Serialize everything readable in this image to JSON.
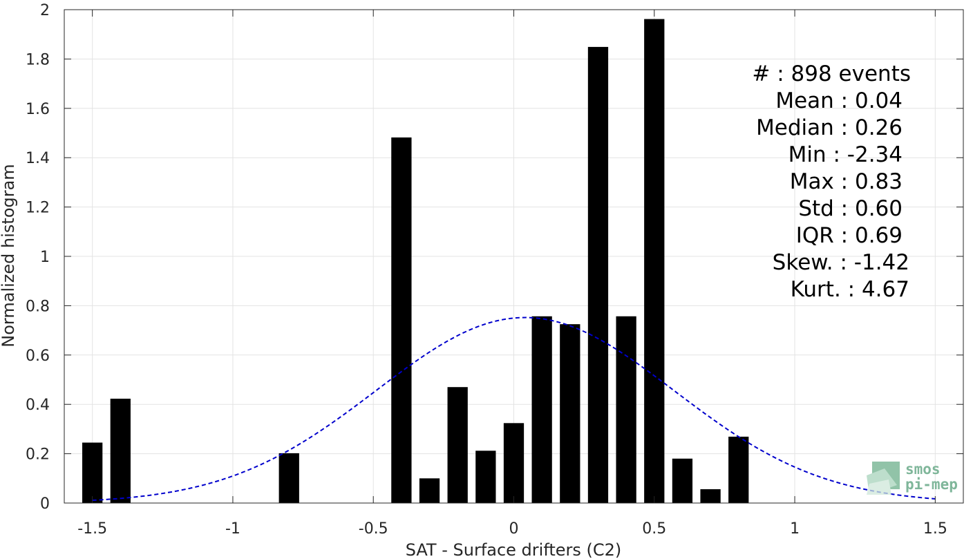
{
  "chart_data": {
    "type": "bar",
    "xlabel": "SAT - Surface drifters (C2)",
    "ylabel": "Normalized histogram",
    "xlim": [
      -1.6,
      1.6
    ],
    "ylim": [
      0,
      2
    ],
    "xticks": [
      -1.5,
      -1,
      -0.5,
      0,
      0.5,
      1,
      1.5
    ],
    "xtick_labels": [
      "-1.5",
      "-1",
      "-0.5",
      "0",
      "0.5",
      "1",
      "1.5"
    ],
    "yticks": [
      0,
      0.2,
      0.4,
      0.6,
      0.8,
      1,
      1.2,
      1.4,
      1.6,
      1.8,
      2
    ],
    "ytick_labels": [
      "0",
      "0.2",
      "0.4",
      "0.6",
      "0.8",
      "1",
      "1.2",
      "1.4",
      "1.6",
      "1.8",
      "2"
    ],
    "grid": true,
    "bar_color": "#000000",
    "bar_width": 0.072,
    "x": [
      -1.5,
      -1.4,
      -0.8,
      -0.4,
      -0.3,
      -0.2,
      -0.1,
      0.0,
      0.1,
      0.2,
      0.3,
      0.4,
      0.5,
      0.6,
      0.7,
      0.8
    ],
    "values": [
      0.245,
      0.423,
      0.202,
      1.482,
      0.1,
      0.47,
      0.212,
      0.324,
      0.757,
      0.725,
      1.849,
      0.757,
      1.962,
      0.18,
      0.056,
      0.269
    ],
    "fit_curve": {
      "style": "dashed",
      "color": "#0000cc",
      "mean": 0.04,
      "std": 0.53,
      "peak": 0.752,
      "x_range": [
        -1.5,
        1.5
      ]
    },
    "stats": [
      {
        "label": "#  : 898 events"
      },
      {
        "label": "Mean : 0.04"
      },
      {
        "label": "Median : 0.26"
      },
      {
        "label": "Min : -2.34"
      },
      {
        "label": "Max : 0.83"
      },
      {
        "label": "Std : 0.60"
      },
      {
        "label": "IQR : 0.69"
      },
      {
        "label": "Skew. : -1.42"
      },
      {
        "label": "Kurt. : 4.67"
      }
    ]
  },
  "logo": {
    "line1": "smos",
    "line2": "pi-mep",
    "color": "#7fb69a"
  }
}
